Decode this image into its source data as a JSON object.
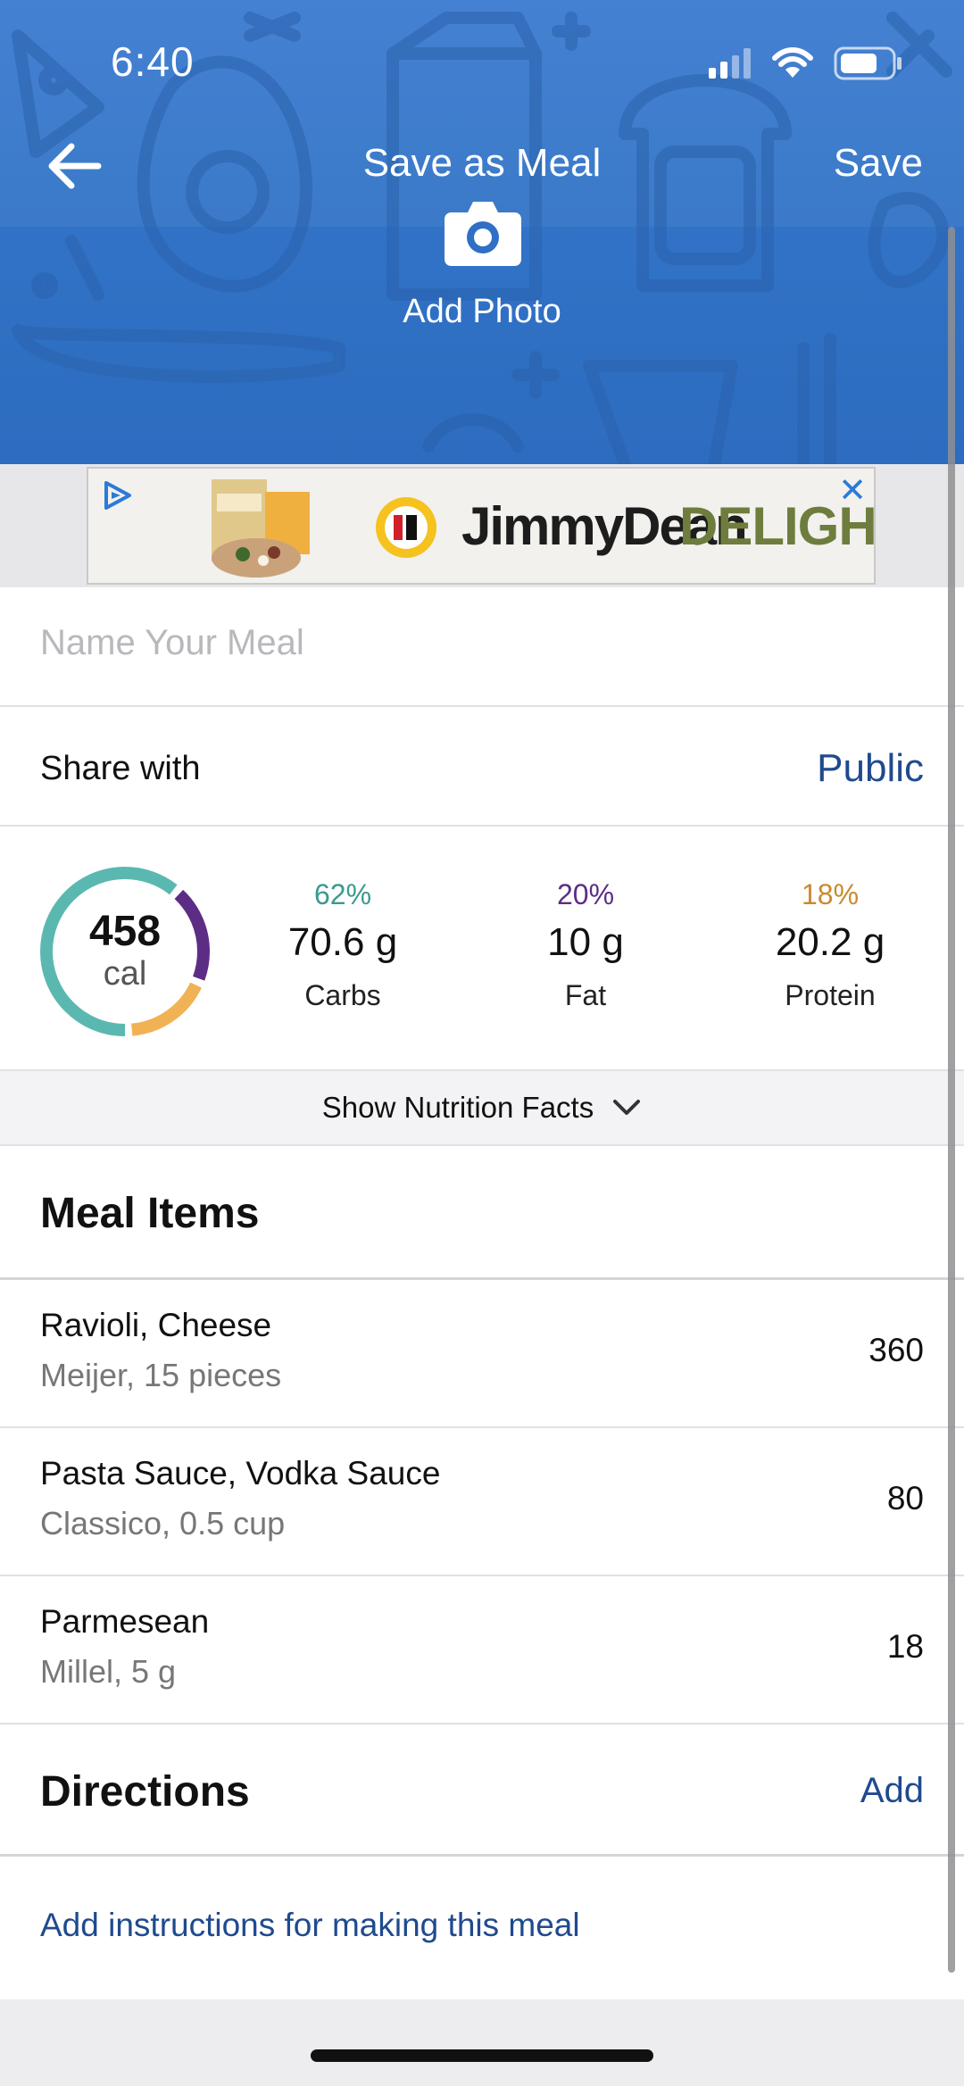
{
  "status_bar": {
    "time": "6:40"
  },
  "nav": {
    "title": "Save as Meal",
    "save_label": "Save"
  },
  "photo": {
    "label": "Add Photo"
  },
  "ad": {
    "brand": "JimmyDean",
    "sub_brand": "DELIGHTS",
    "close": "✕"
  },
  "meal_name": {
    "placeholder": "Name Your Meal",
    "value": ""
  },
  "share": {
    "label": "Share with",
    "value": "Public"
  },
  "summary": {
    "calories": "458",
    "calories_unit": "cal",
    "macros": [
      {
        "percent": "62%",
        "value": "70.6 g",
        "label": "Carbs",
        "color": "#3b9a8e"
      },
      {
        "percent": "20%",
        "value": "10 g",
        "label": "Fat",
        "color": "#5d2d86"
      },
      {
        "percent": "18%",
        "value": "20.2 g",
        "label": "Protein",
        "color": "#c98a2c"
      }
    ],
    "ring_colors": {
      "carbs": "#5bb8b1",
      "fat": "#5d2d86",
      "protein": "#f0b254"
    }
  },
  "nutrition_toggle": {
    "label": "Show Nutrition Facts"
  },
  "meal_items": {
    "title": "Meal Items",
    "items": [
      {
        "name": "Ravioli, Cheese",
        "detail": "Meijer, 15 pieces",
        "calories": "360"
      },
      {
        "name": "Pasta Sauce, Vodka Sauce",
        "detail": "Classico, 0.5 cup",
        "calories": "80"
      },
      {
        "name": "Parmesean",
        "detail": "Millel, 5 g",
        "calories": "18"
      }
    ]
  },
  "directions": {
    "title": "Directions",
    "add_label": "Add",
    "placeholder": "Add instructions for making this meal"
  }
}
